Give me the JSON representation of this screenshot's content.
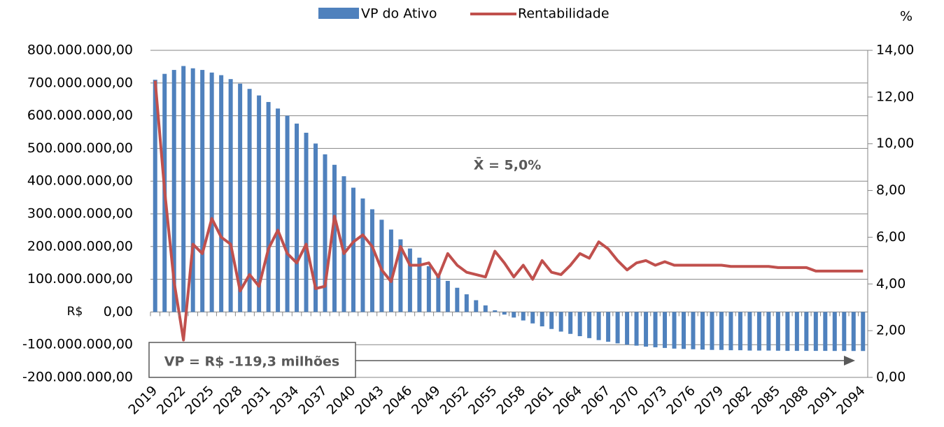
{
  "chart_data": {
    "type": "bar_line",
    "legend": [
      "VP do Ativo",
      "Rentabilidade"
    ],
    "y_unit_label": "R$",
    "y2_unit_label": "%",
    "annotations": [
      "X̄ = 5,0%",
      "VP = R$ -119,3 milhões"
    ],
    "categories": [
      "2019",
      null,
      null,
      "2022",
      null,
      null,
      "2025",
      null,
      null,
      "2028",
      null,
      null,
      "2031",
      null,
      null,
      "2034",
      null,
      null,
      "2037",
      null,
      null,
      "2040",
      null,
      null,
      "2043",
      null,
      null,
      "2046",
      null,
      null,
      "2049",
      null,
      null,
      "2052",
      null,
      null,
      "2055",
      null,
      null,
      "2058",
      null,
      null,
      "2061",
      null,
      null,
      "2064",
      null,
      null,
      "2067",
      null,
      null,
      "2070",
      null,
      null,
      "2073",
      null,
      null,
      "2076",
      null,
      null,
      "2079",
      null,
      null,
      "2082",
      null,
      null,
      "2085",
      null,
      null,
      "2088",
      null,
      null,
      "2091",
      null,
      null,
      "2094"
    ],
    "series": [
      {
        "name": "VP do Ativo",
        "color": "#4f81bd",
        "axis": "y",
        "values": [
          710000000,
          728000000,
          740000000,
          752000000,
          745000000,
          740000000,
          732000000,
          724000000,
          712000000,
          698000000,
          682000000,
          662000000,
          642000000,
          622000000,
          600000000,
          576000000,
          548000000,
          515000000,
          482000000,
          450000000,
          415000000,
          380000000,
          347000000,
          314000000,
          282000000,
          252000000,
          222000000,
          194000000,
          166000000,
          140000000,
          117000000,
          95000000,
          74000000,
          54000000,
          36000000,
          20000000,
          5000000,
          -8000000,
          -17000000,
          -26000000,
          -35000000,
          -44000000,
          -52000000,
          -60000000,
          -67000000,
          -74000000,
          -80000000,
          -86000000,
          -91000000,
          -96000000,
          -100000000,
          -103000000,
          -106000000,
          -108000000,
          -110000000,
          -112000000,
          -113000000,
          -114000000,
          -115000000,
          -116000000,
          -116000000,
          -117000000,
          -117000000,
          -118000000,
          -118000000,
          -118000000,
          -118500000,
          -119000000,
          -119000000,
          -119000000,
          -119000000,
          -119000000,
          -119200000,
          -119200000,
          -119300000,
          -119300000
        ]
      },
      {
        "name": "Rentabilidade",
        "color": "#c0504d",
        "axis": "y2",
        "values": [
          12.7,
          8.0,
          4.1,
          1.6,
          5.7,
          5.3,
          6.8,
          6.0,
          5.7,
          3.7,
          4.4,
          3.9,
          5.5,
          6.3,
          5.3,
          4.9,
          5.7,
          3.8,
          3.9,
          6.9,
          5.3,
          5.8,
          6.1,
          5.6,
          4.6,
          4.1,
          5.6,
          4.8,
          4.8,
          4.9,
          4.3,
          5.3,
          4.8,
          4.5,
          4.4,
          4.3,
          5.4,
          4.9,
          4.3,
          4.8,
          4.2,
          5.0,
          4.5,
          4.4,
          4.8,
          5.3,
          5.1,
          5.8,
          5.5,
          5.0,
          4.6,
          4.9,
          5.0,
          4.8,
          4.95,
          4.8,
          4.8,
          4.8,
          4.8,
          4.8,
          4.8,
          4.75,
          4.75,
          4.75,
          4.75,
          4.75,
          4.7,
          4.7,
          4.7,
          4.7,
          4.55,
          4.55,
          4.55,
          4.55,
          4.55,
          4.55
        ]
      }
    ],
    "ylim": [
      -200000000,
      800000000
    ],
    "yticks": [
      {
        "value": -200000000,
        "label": "-200.000.000,00"
      },
      {
        "value": -100000000,
        "label": "-100.000.000,00"
      },
      {
        "value": 0,
        "label": "0,00"
      },
      {
        "value": 100000000,
        "label": "100.000.000,00"
      },
      {
        "value": 200000000,
        "label": "200.000.000,00"
      },
      {
        "value": 300000000,
        "label": "300.000.000,00"
      },
      {
        "value": 400000000,
        "label": "400.000.000,00"
      },
      {
        "value": 500000000,
        "label": "500.000.000,00"
      },
      {
        "value": 600000000,
        "label": "600.000.000,00"
      },
      {
        "value": 700000000,
        "label": "700.000.000,00"
      },
      {
        "value": 800000000,
        "label": "800.000.000,00"
      }
    ],
    "y2lim": [
      0,
      14
    ],
    "y2ticks": [
      {
        "value": 0,
        "label": "0,00"
      },
      {
        "value": 2,
        "label": "2,00"
      },
      {
        "value": 4,
        "label": "4,00"
      },
      {
        "value": 6,
        "label": "6,00"
      },
      {
        "value": 8,
        "label": "8,00"
      },
      {
        "value": 10,
        "label": "10,00"
      },
      {
        "value": 12,
        "label": "12,00"
      },
      {
        "value": 14,
        "label": "14,00"
      }
    ],
    "grid": true
  }
}
